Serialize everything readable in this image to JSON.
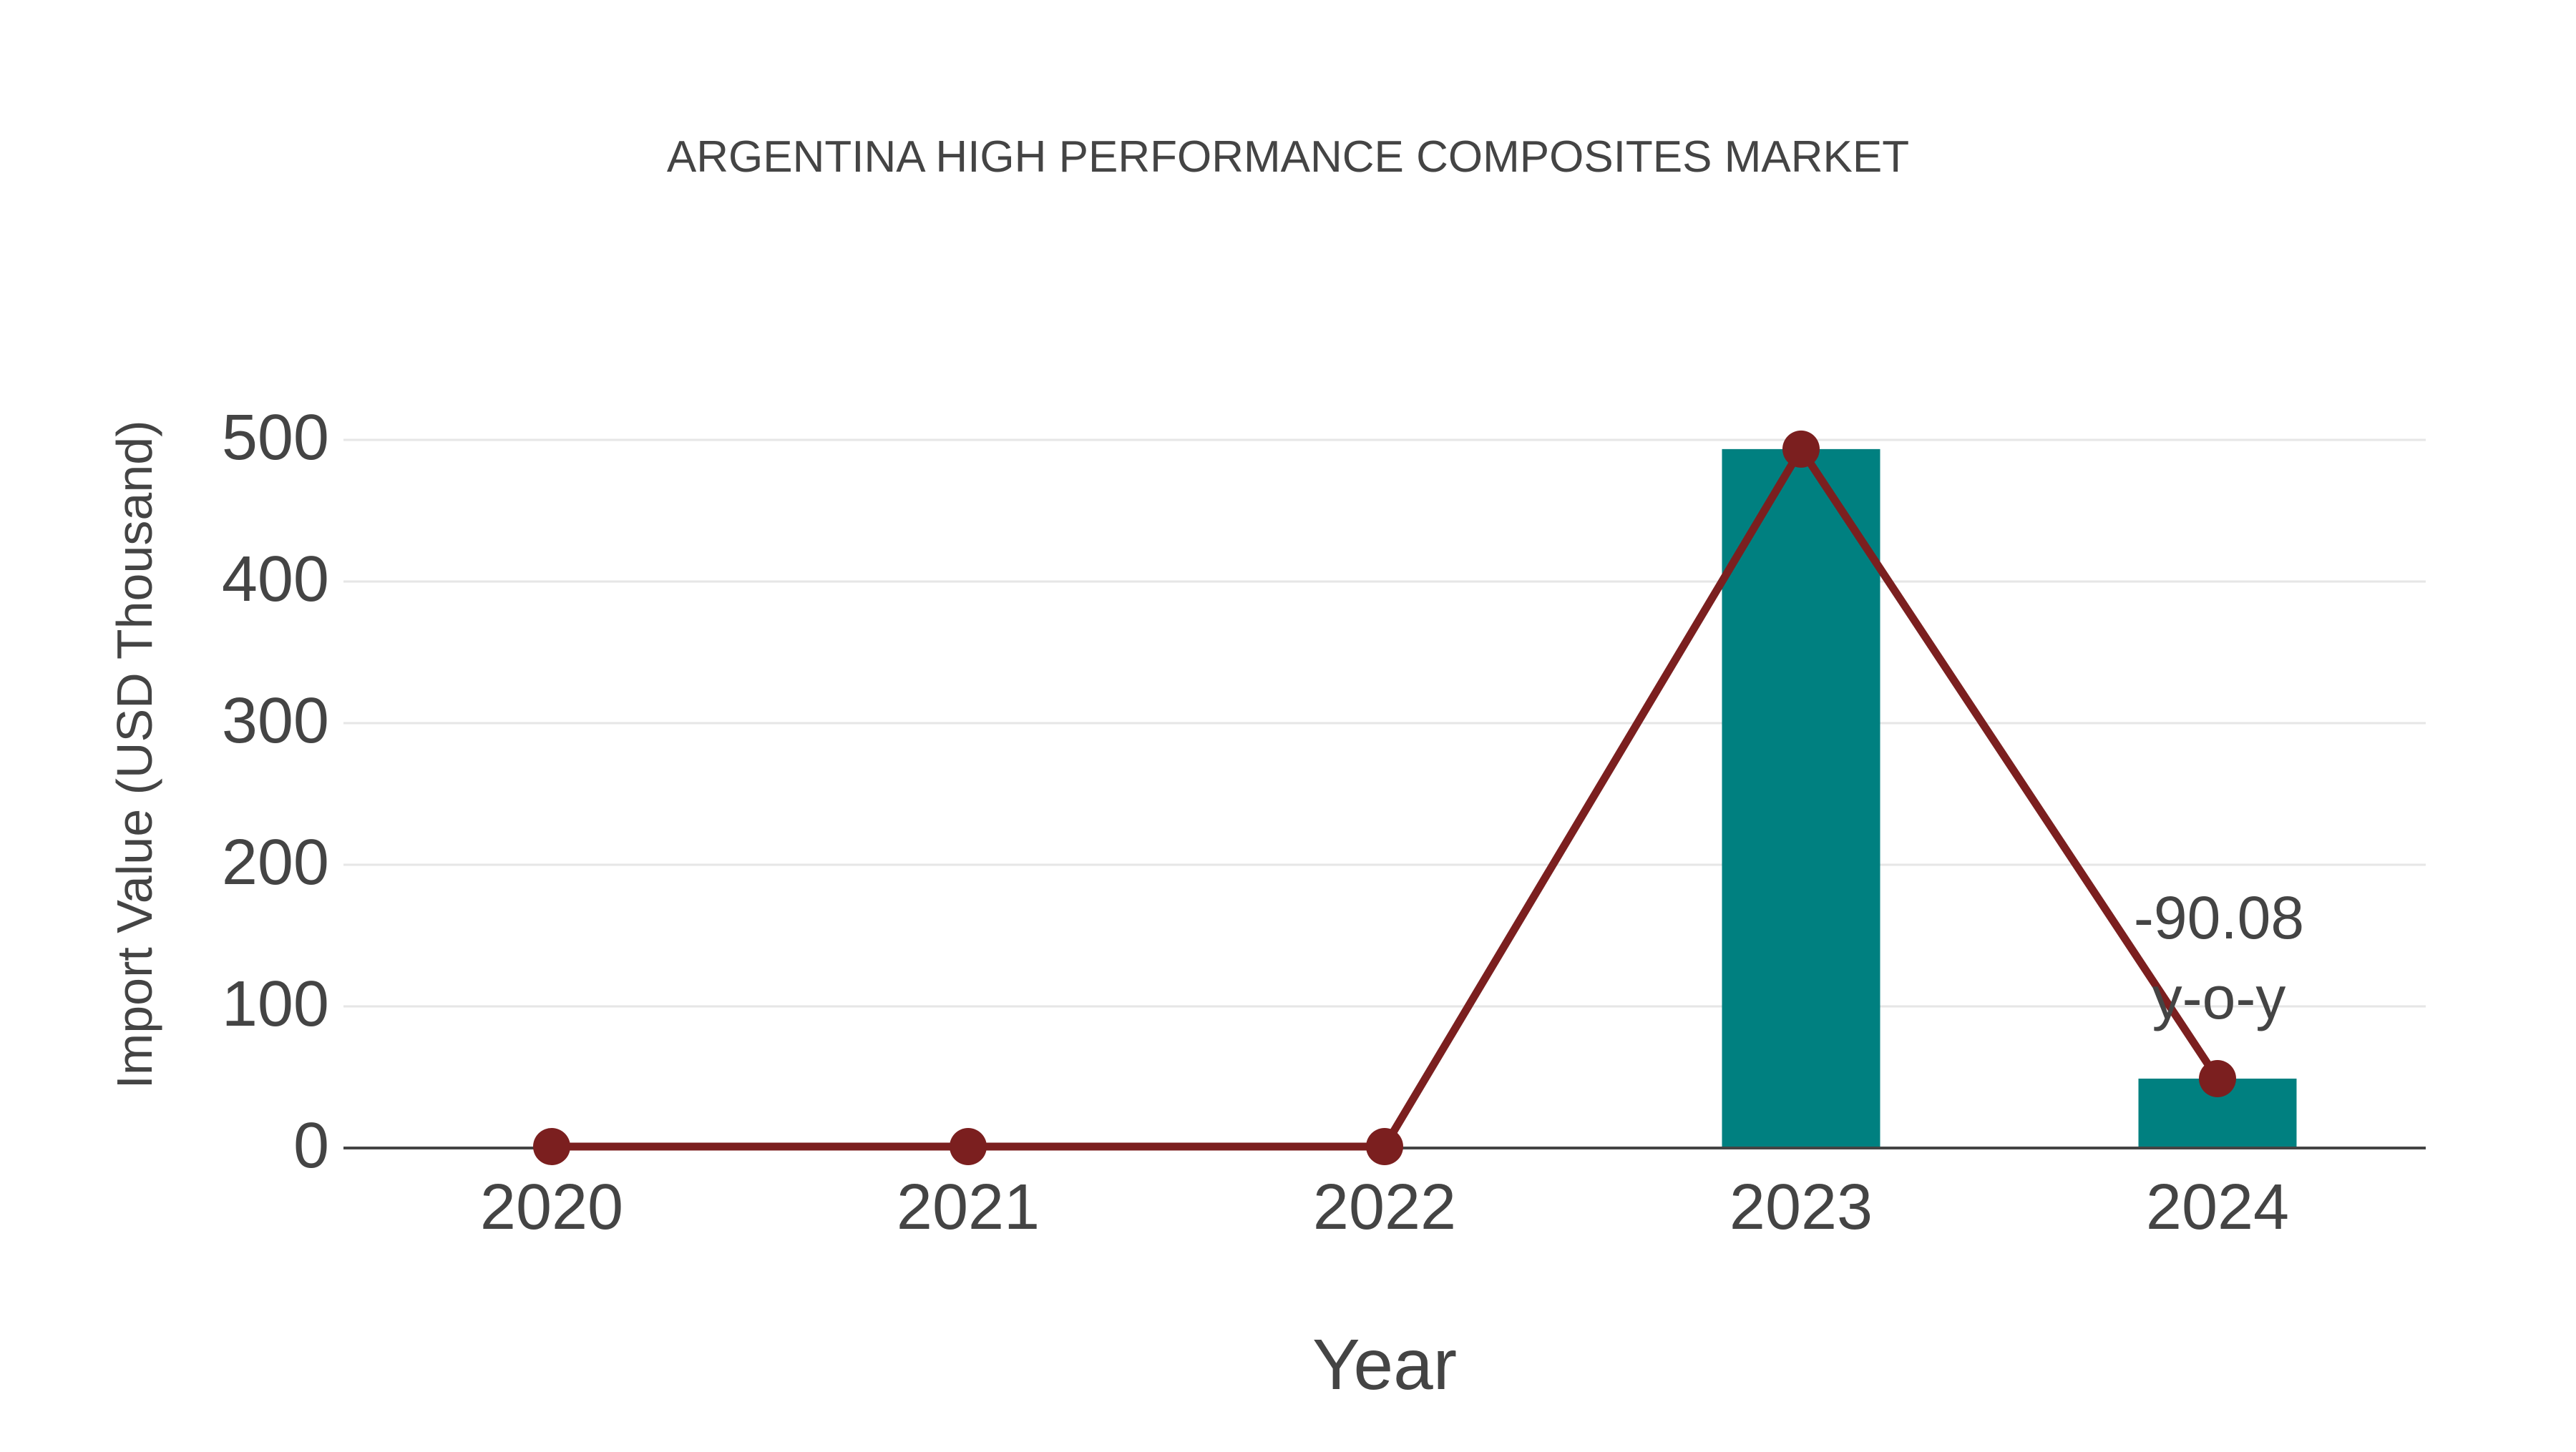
{
  "chart_data": {
    "type": "bar",
    "title": "ARGENTINA HIGH PERFORMANCE COMPOSITES MARKET",
    "xlabel": "Year",
    "ylabel": "Import Value (USD Thousand)",
    "categories": [
      "2020",
      "2021",
      "2022",
      "2023",
      "2024"
    ],
    "series": [
      {
        "name": "Import Value",
        "kind": "bar",
        "color": "#008080",
        "values": [
          0,
          0,
          0,
          493.5,
          49.0
        ]
      },
      {
        "name": "Trend",
        "kind": "line",
        "color": "#7b1f1f",
        "values": [
          0,
          0,
          0,
          493.5,
          49.0
        ]
      }
    ],
    "yticks": [
      0,
      100,
      200,
      300,
      400,
      500
    ],
    "ylim": [
      0,
      500
    ],
    "grid": true,
    "legend": "none",
    "annotations": [
      {
        "category": "2024",
        "lines": [
          "-90.08",
          "y-o-y"
        ]
      }
    ]
  },
  "colors": {
    "bar": "#008080",
    "line": "#7b1f1f",
    "grid": "#e6e6e6",
    "axis": "#444444",
    "text": "#444444"
  }
}
